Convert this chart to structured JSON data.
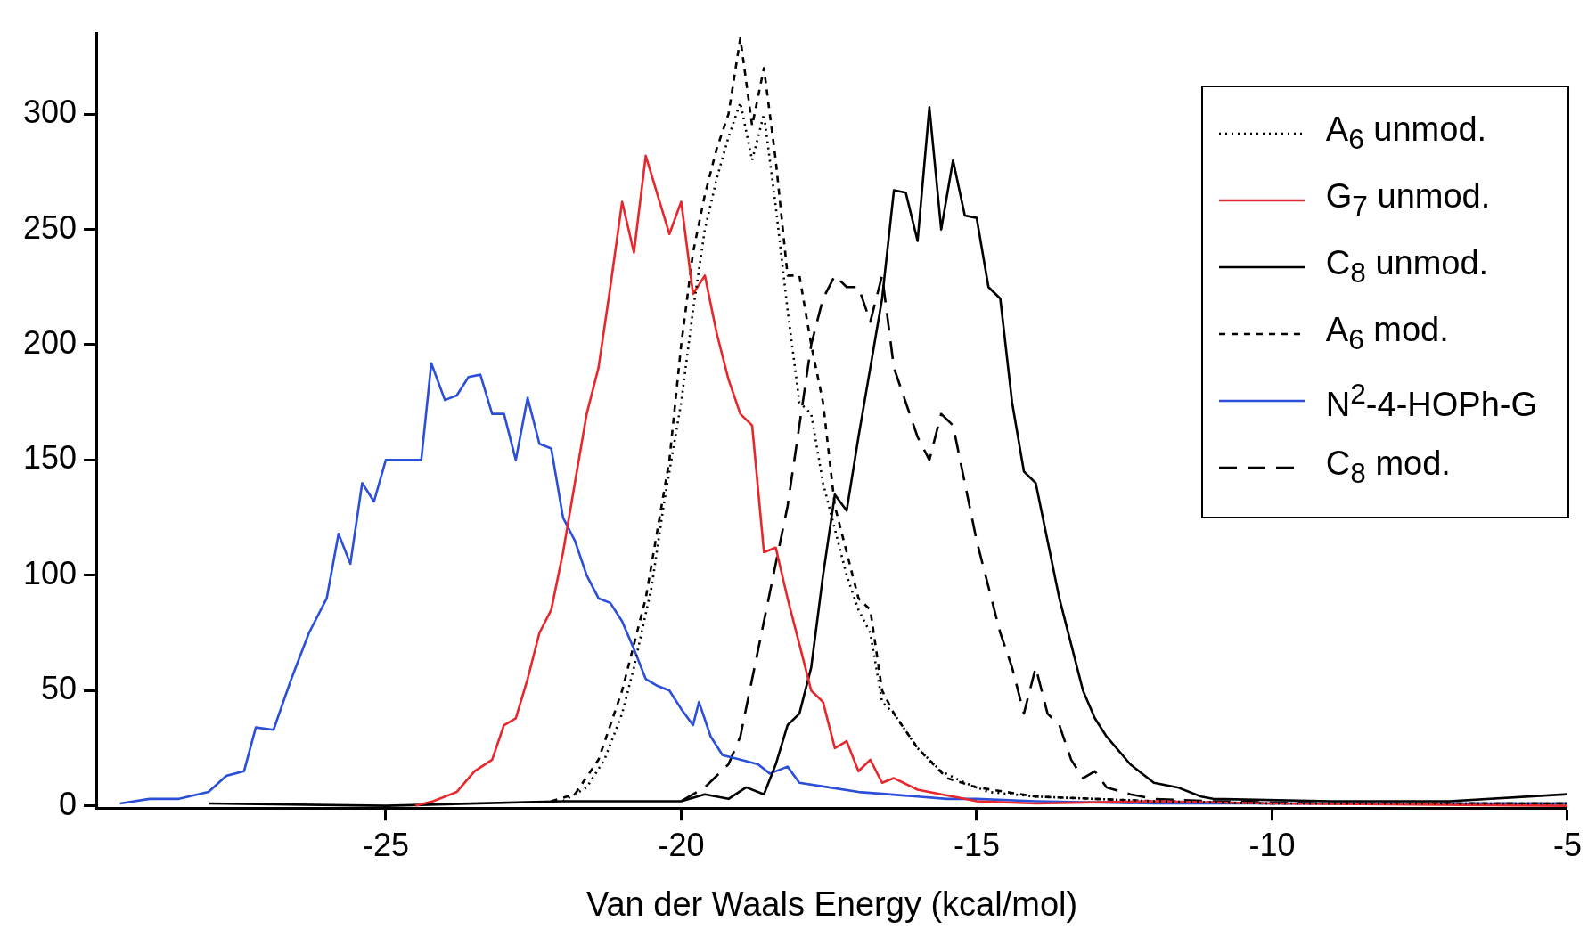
{
  "chart_data": {
    "type": "line",
    "xlabel": "Van der Waals Energy (kcal/mol)",
    "xlim": [
      -29.9,
      -5
    ],
    "ylim": [
      -1,
      335
    ],
    "xticks": [
      -25,
      -20,
      -15,
      -10,
      -5
    ],
    "yticks": [
      0,
      50,
      100,
      150,
      200,
      250,
      300
    ],
    "grid": false,
    "legend": "top right",
    "series": [
      {
        "name": "A$_{6}$ unmod.",
        "color": "#000000",
        "line_style": "dotted",
        "x": [
          -22,
          -21.6,
          -21.3,
          -21,
          -20.8,
          -20.5,
          -20.3,
          -20,
          -19.8,
          -19.6,
          -19.4,
          -19.2,
          -19,
          -18.8,
          -18.6,
          -18.4,
          -18.2,
          -18,
          -17.8,
          -17.6,
          -17.4,
          -17.2,
          -17,
          -16.8,
          -16.6,
          -16.4,
          -16,
          -15.6,
          -15.2,
          -14.8,
          -14,
          -13,
          -12,
          -10,
          -5
        ],
        "values": [
          2,
          8,
          20,
          40,
          60,
          95,
          130,
          175,
          215,
          250,
          272,
          290,
          305,
          280,
          300,
          260,
          215,
          175,
          170,
          140,
          120,
          100,
          85,
          75,
          45,
          40,
          25,
          15,
          10,
          6,
          4,
          3,
          2,
          1,
          1
        ]
      },
      {
        "name": "G$_{7}$ unmod.",
        "color": "#e8272c",
        "line_style": "solid",
        "x": [
          -24.5,
          -24.2,
          -23.8,
          -23.5,
          -23.2,
          -23,
          -22.8,
          -22.6,
          -22.4,
          -22.2,
          -22,
          -21.8,
          -21.6,
          -21.4,
          -21.2,
          -21,
          -20.8,
          -20.6,
          -20.4,
          -20.2,
          -20,
          -19.8,
          -19.6,
          -19.4,
          -19.2,
          -19,
          -18.8,
          -18.6,
          -18.4,
          -18.2,
          -18,
          -17.8,
          -17.6,
          -17.4,
          -17.2,
          -17,
          -16.8,
          -16.6,
          -16.4,
          -16,
          -15.6,
          -15.2,
          -15,
          -14,
          -12,
          -10,
          -5
        ],
        "values": [
          0,
          2,
          6,
          15,
          20,
          35,
          38,
          55,
          75,
          85,
          110,
          140,
          170,
          190,
          225,
          262,
          240,
          282,
          265,
          248,
          262,
          222,
          230,
          205,
          185,
          170,
          165,
          110,
          112,
          90,
          70,
          50,
          45,
          25,
          28,
          15,
          20,
          10,
          12,
          7,
          5,
          3,
          2,
          1,
          2,
          1,
          0
        ]
      },
      {
        "name": "C$_{8}$ unmod.",
        "color": "#000000",
        "line_style": "solid",
        "x": [
          -28,
          -25,
          -22,
          -20,
          -19.6,
          -19.2,
          -18.9,
          -18.6,
          -18.4,
          -18.2,
          -18,
          -17.8,
          -17.6,
          -17.4,
          -17.2,
          -17,
          -16.8,
          -16.6,
          -16.4,
          -16.2,
          -16,
          -15.8,
          -15.6,
          -15.4,
          -15.2,
          -15,
          -14.8,
          -14.6,
          -14.4,
          -14.2,
          -14,
          -13.8,
          -13.6,
          -13.4,
          -13.2,
          -13,
          -12.8,
          -12.4,
          -12,
          -11.6,
          -11.2,
          -11,
          -9,
          -7,
          -5
        ],
        "values": [
          1,
          0,
          2,
          2,
          5,
          3,
          8,
          5,
          18,
          35,
          40,
          60,
          100,
          135,
          128,
          160,
          190,
          220,
          267,
          266,
          245,
          303,
          250,
          280,
          256,
          255,
          225,
          220,
          175,
          145,
          140,
          115,
          90,
          70,
          50,
          38,
          30,
          18,
          10,
          8,
          4,
          3,
          2,
          2,
          5
        ]
      },
      {
        "name": "A$_{6}$ mod.",
        "color": "#000000",
        "line_style": "dashed",
        "x": [
          -22.2,
          -21.8,
          -21.4,
          -21,
          -20.6,
          -20.2,
          -20,
          -19.8,
          -19.6,
          -19.4,
          -19.2,
          -19,
          -18.8,
          -18.6,
          -18.4,
          -18.2,
          -18,
          -17.8,
          -17.6,
          -17.4,
          -17.2,
          -17,
          -16.8,
          -16.6,
          -16.4,
          -16,
          -15.5,
          -15,
          -14,
          -12,
          -10,
          -5
        ],
        "values": [
          2,
          5,
          20,
          50,
          90,
          150,
          200,
          240,
          265,
          285,
          300,
          333,
          295,
          320,
          280,
          230,
          230,
          200,
          175,
          130,
          110,
          90,
          85,
          50,
          40,
          25,
          12,
          8,
          4,
          2,
          1,
          1
        ]
      },
      {
        "name": "N$^{2}$-4-HOPh-G",
        "color": "#2b4fd8",
        "line_style": "solid",
        "x": [
          -29.5,
          -29,
          -28.5,
          -28,
          -27.7,
          -27.4,
          -27.2,
          -26.9,
          -26.6,
          -26.3,
          -26,
          -25.8,
          -25.6,
          -25.4,
          -25.2,
          -25,
          -24.8,
          -24.4,
          -24.23,
          -24,
          -23.8,
          -23.6,
          -23.4,
          -23.2,
          -23,
          -22.8,
          -22.6,
          -22.4,
          -22.2,
          -22,
          -21.8,
          -21.6,
          -21.4,
          -21.2,
          -21,
          -20.8,
          -20.6,
          -20.4,
          -20.2,
          -20,
          -19.8,
          -19.7,
          -19.5,
          -19.3,
          -19,
          -18.7,
          -18.5,
          -18.2,
          -18,
          -17.5,
          -17,
          -16.5,
          -16,
          -15.5,
          -15,
          -14,
          -12,
          -10,
          -7,
          -5
        ],
        "values": [
          1,
          3,
          3,
          6,
          13,
          15,
          34,
          33,
          55,
          75,
          90,
          118,
          105,
          140,
          132,
          150,
          150,
          150,
          192,
          176,
          178,
          186,
          187,
          170,
          170,
          150,
          177,
          157,
          155,
          125,
          115,
          100,
          90,
          88,
          80,
          68,
          55,
          52,
          50,
          42,
          35,
          45,
          30,
          22,
          20,
          18,
          14,
          17,
          10,
          8,
          6,
          5,
          4,
          3,
          3,
          2,
          1,
          1,
          1,
          1
        ]
      },
      {
        "name": "C$_{8}$ mod.",
        "color": "#000000",
        "line_style": "long-dashed",
        "x": [
          -20,
          -19.6,
          -19.2,
          -19,
          -18.8,
          -18.6,
          -18.4,
          -18.2,
          -18,
          -17.8,
          -17.6,
          -17.4,
          -17.2,
          -17,
          -16.8,
          -16.6,
          -16.4,
          -16.2,
          -16,
          -15.8,
          -15.6,
          -15.4,
          -15.2,
          -15,
          -14.8,
          -14.6,
          -14.4,
          -14.2,
          -14,
          -13.8,
          -13.6,
          -13.4,
          -13.2,
          -13,
          -12.8,
          -12.4,
          -12,
          -11,
          -9,
          -5
        ],
        "values": [
          2,
          8,
          18,
          30,
          55,
          80,
          105,
          130,
          165,
          200,
          220,
          230,
          225,
          225,
          210,
          230,
          190,
          175,
          160,
          150,
          170,
          165,
          140,
          115,
          95,
          75,
          60,
          40,
          60,
          40,
          35,
          20,
          12,
          15,
          8,
          5,
          3,
          2,
          1,
          1
        ]
      }
    ]
  }
}
